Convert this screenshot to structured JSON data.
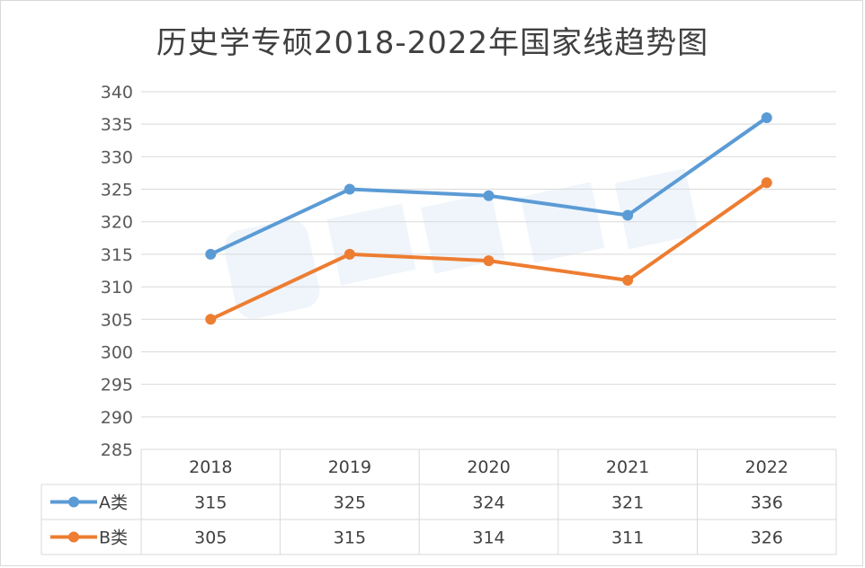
{
  "chart_data": {
    "type": "line",
    "title": "历史学专硕2018-2022年国家线趋势图",
    "categories": [
      "2018",
      "2019",
      "2020",
      "2021",
      "2022"
    ],
    "series": [
      {
        "name": "A类",
        "values": [
          315,
          325,
          324,
          321,
          336
        ],
        "color": "#5b9bd5"
      },
      {
        "name": "B类",
        "values": [
          305,
          315,
          314,
          311,
          326
        ],
        "color": "#ed7d31"
      }
    ],
    "ylim": [
      285,
      340
    ],
    "yticks": [
      "340",
      "335",
      "330",
      "325",
      "320",
      "315",
      "310",
      "305",
      "300",
      "295",
      "290",
      "285"
    ],
    "grid": true,
    "legend": "data-table",
    "data_table": true
  },
  "colors": {
    "grid": "#d9d9d9",
    "text": "#404040"
  }
}
